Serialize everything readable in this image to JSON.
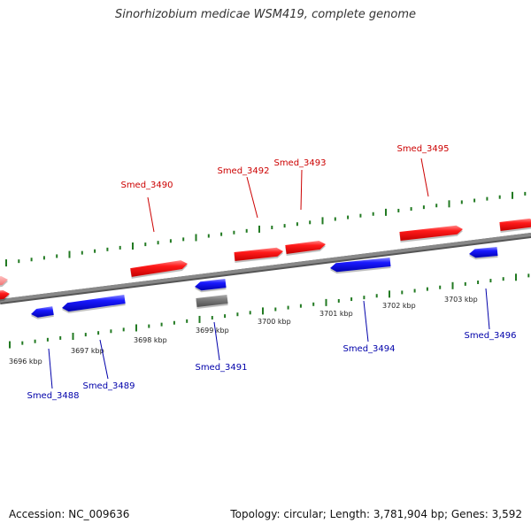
{
  "title": "Sinorhizobium medicae WSM419, complete genome",
  "footer": {
    "accession": "Accession: NC_009636",
    "topology": "Topology: circular; Length: 3,781,904 bp; Genes: 3,592"
  },
  "colors": {
    "forward": "#ff0000",
    "reverse": "#0000ff",
    "other": "#707070",
    "forward_label": "#cc0000",
    "reverse_label": "#0000aa",
    "tick": "#227a22",
    "backbone": "#888888"
  },
  "kbp_ticks": [
    "3696 kbp",
    "3697 kbp",
    "3698 kbp",
    "3699 kbp",
    "3700 kbp",
    "3701 kbp",
    "3702 kbp",
    "3703 kbp"
  ],
  "genes": [
    {
      "label": "Smed_3488",
      "strand": "reverse"
    },
    {
      "label": "Smed_3489",
      "strand": "reverse"
    },
    {
      "label": "Smed_3490",
      "strand": "forward"
    },
    {
      "label": "Smed_3491",
      "strand": "reverse"
    },
    {
      "label": "Smed_3492",
      "strand": "forward"
    },
    {
      "label": "Smed_3493",
      "strand": "forward"
    },
    {
      "label": "Smed_3494",
      "strand": "reverse"
    },
    {
      "label": "Smed_3495",
      "strand": "forward"
    },
    {
      "label": "Smed_3496",
      "strand": "reverse"
    }
  ]
}
